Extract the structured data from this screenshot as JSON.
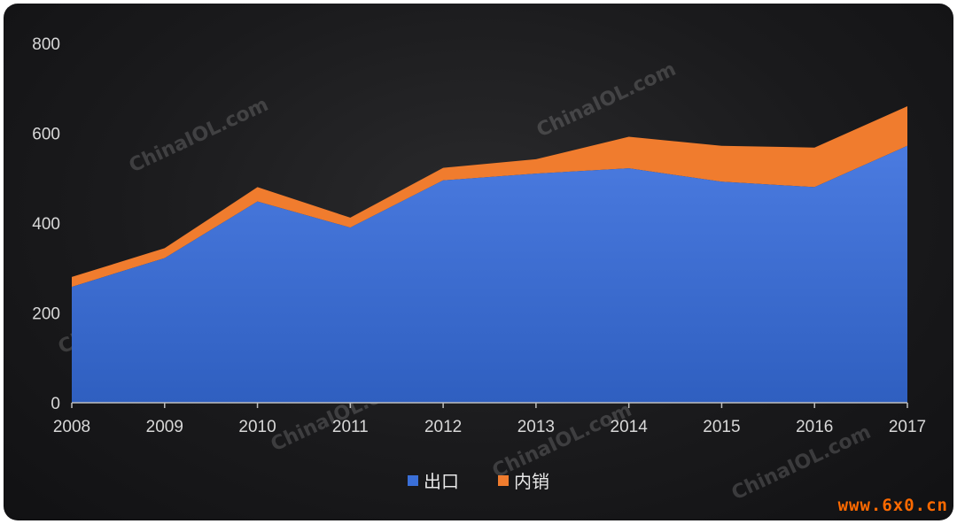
{
  "chart_data": {
    "type": "area",
    "stacked": true,
    "x": [
      "2008",
      "2009",
      "2010",
      "2011",
      "2012",
      "2013",
      "2014",
      "2015",
      "2016",
      "2017"
    ],
    "series": [
      {
        "name": "出口",
        "values": [
          258,
          322,
          448,
          390,
          495,
          510,
          522,
          492,
          480,
          572
        ],
        "color": "#3a6fd8"
      },
      {
        "name": "内销",
        "values": [
          22,
          22,
          32,
          22,
          28,
          32,
          70,
          80,
          88,
          88
        ],
        "color": "#f07c2e"
      }
    ],
    "yticks": [
      "0",
      "200",
      "400",
      "600",
      "800"
    ],
    "ylim": [
      0,
      800
    ],
    "legend_position": "bottom-center",
    "grid": false
  },
  "watermark_text": "ChinaIOL.com",
  "site_badge": "www.6x0.cn"
}
